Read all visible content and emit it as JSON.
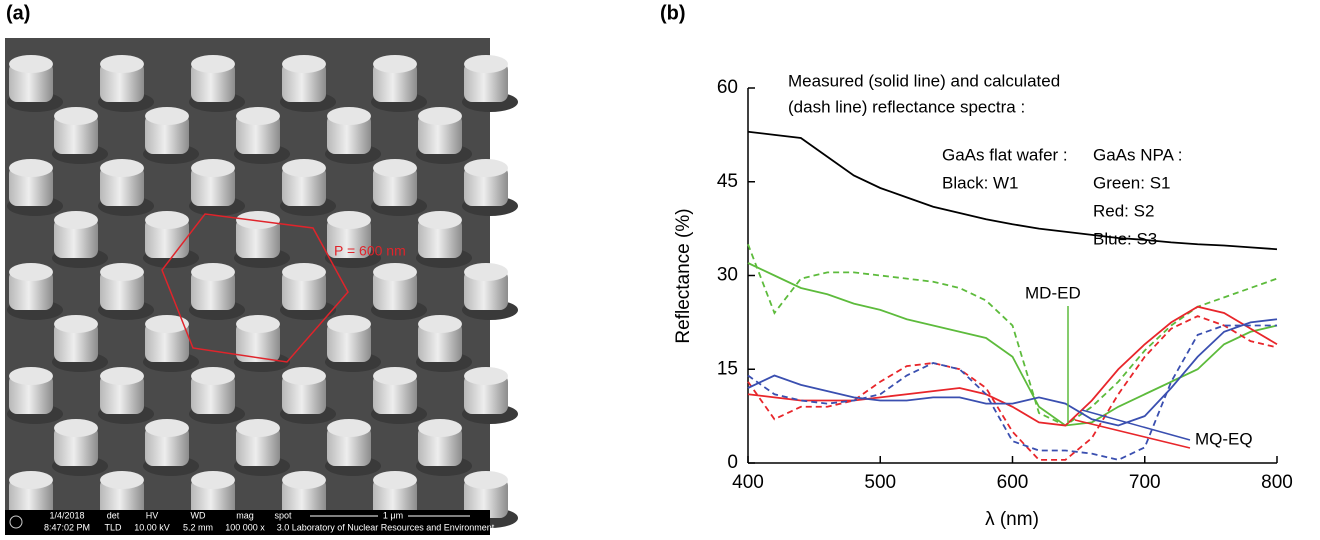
{
  "panel_a": {
    "label": "(a)",
    "period_label": "P = 600 nm",
    "info_bar": {
      "date": "1/4/2018",
      "time": "8:47:02 PM",
      "det_title": "det",
      "det": "TLD",
      "hv_title": "HV",
      "hv": "10.00 kV",
      "wd_title": "WD",
      "wd": "5.2 mm",
      "mag_title": "mag",
      "mag": "100 000 x",
      "spot_title": "spot",
      "spot": "3.0",
      "scale": "1 μm",
      "lab": "Laboratory of Nuclear Resources and Environment"
    }
  },
  "chart_data": {
    "type": "line",
    "panel_label": "(b)",
    "x_label": "λ (nm)",
    "y_label": "Reflectance (%)",
    "xlim": [
      400,
      800
    ],
    "xticks": [
      400,
      500,
      600,
      700,
      800
    ],
    "ylim": [
      0,
      60
    ],
    "yticks": [
      0,
      15,
      30,
      45,
      60
    ],
    "annotations": {
      "header_1": "Measured (solid line) and calculated",
      "header_2": "(dash line) reflectance spectra :",
      "flat_title": "GaAs  flat wafer :",
      "flat_black": "Black: W1",
      "npa_title": "GaAs  NPA :",
      "npa_green": "Green: S1",
      "npa_red": "Red: S2",
      "npa_blue": "Blue: S3",
      "md_ed": "MD-ED",
      "mq_eq": "MQ-EQ"
    },
    "x": [
      400,
      420,
      440,
      460,
      480,
      500,
      520,
      540,
      560,
      580,
      600,
      620,
      640,
      660,
      680,
      700,
      720,
      740,
      760,
      780,
      800
    ],
    "series": [
      {
        "color": "#000000",
        "style": "solid",
        "values": [
          53,
          52.5,
          52,
          49,
          46,
          44,
          42.5,
          41,
          40,
          39,
          38.2,
          37.5,
          37,
          36.5,
          36,
          35.7,
          35.3,
          35,
          34.8,
          34.5,
          34.2
        ]
      },
      {
        "color": "#5dbb3c",
        "style": "solid",
        "values": [
          32,
          30,
          28,
          27,
          25.5,
          24.5,
          23,
          22,
          21,
          20,
          17,
          9,
          6,
          6.5,
          9,
          11,
          13,
          15,
          19,
          21,
          22
        ]
      },
      {
        "color": "#5dbb3c",
        "style": "dashed",
        "values": [
          35,
          24,
          29.5,
          30.5,
          30.5,
          30,
          29.5,
          29,
          28,
          26,
          22,
          8,
          6,
          9,
          13,
          18,
          22,
          25,
          26.5,
          28,
          29.5
        ]
      },
      {
        "color": "#e8262b",
        "style": "solid",
        "values": [
          11,
          10.5,
          10,
          10,
          10,
          10.5,
          11,
          11.5,
          12,
          11,
          9,
          6.5,
          6,
          10,
          15,
          19,
          22.5,
          25,
          24,
          21.5,
          19
        ]
      },
      {
        "color": "#e8262b",
        "style": "dashed",
        "values": [
          13,
          7,
          9,
          9,
          10,
          13,
          15.5,
          16,
          15,
          12,
          5,
          0.5,
          0.5,
          4,
          11,
          17,
          21.5,
          23.5,
          22,
          19.5,
          18.5
        ]
      },
      {
        "color": "#3a4fb0",
        "style": "solid",
        "values": [
          12,
          14,
          12.5,
          11.5,
          10.5,
          10,
          10,
          10.5,
          10.5,
          9.5,
          9.5,
          10.5,
          9.5,
          7,
          6,
          7.5,
          12,
          17,
          21,
          22.5,
          23
        ]
      },
      {
        "color": "#3a4fb0",
        "style": "dashed",
        "values": [
          14,
          11,
          10,
          9.5,
          10,
          11,
          14,
          16,
          15,
          11,
          3.5,
          2,
          2,
          1.5,
          0.5,
          2.5,
          13,
          20.5,
          22,
          22,
          22
        ]
      }
    ]
  }
}
